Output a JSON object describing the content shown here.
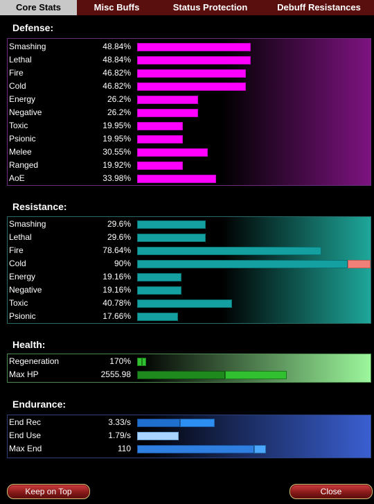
{
  "tabs": [
    "Core Stats",
    "Misc Buffs",
    "Status Protection",
    "Debuff Resistances"
  ],
  "active_tab": "Core Stats",
  "defense": {
    "title": "Defense:",
    "rows": [
      {
        "label": "Smashing",
        "value": "48.84%"
      },
      {
        "label": "Lethal",
        "value": "48.84%"
      },
      {
        "label": "Fire",
        "value": "46.82%"
      },
      {
        "label": "Cold",
        "value": "46.82%"
      },
      {
        "label": "Energy",
        "value": "26.2%"
      },
      {
        "label": "Negative",
        "value": "26.2%"
      },
      {
        "label": "Toxic",
        "value": "19.95%"
      },
      {
        "label": "Psionic",
        "value": "19.95%"
      },
      {
        "label": "Melee",
        "value": "30.55%"
      },
      {
        "label": "Ranged",
        "value": "19.92%"
      },
      {
        "label": "AoE",
        "value": "33.98%"
      }
    ]
  },
  "resistance": {
    "title": "Resistance:",
    "rows": [
      {
        "label": "Smashing",
        "value": "29.6%"
      },
      {
        "label": "Lethal",
        "value": "29.6%"
      },
      {
        "label": "Fire",
        "value": "78.64%"
      },
      {
        "label": "Cold",
        "value": "90%"
      },
      {
        "label": "Energy",
        "value": "19.16%"
      },
      {
        "label": "Negative",
        "value": "19.16%"
      },
      {
        "label": "Toxic",
        "value": "40.78%"
      },
      {
        "label": "Psionic",
        "value": "17.66%"
      }
    ]
  },
  "health": {
    "title": "Health:",
    "rows": [
      {
        "label": "Regeneration",
        "value": "170%"
      },
      {
        "label": "Max HP",
        "value": "2555.98"
      }
    ]
  },
  "endurance": {
    "title": "Endurance:",
    "rows": [
      {
        "label": "End Rec",
        "value": "3.33/s"
      },
      {
        "label": "End Use",
        "value": "1.79/s"
      },
      {
        "label": "Max End",
        "value": "110"
      }
    ]
  },
  "buttons": {
    "keep_on_top": "Keep on Top",
    "close": "Close"
  },
  "colors": {
    "tab_bar": "#5a0f0f",
    "active_tab": "#c8c8c8",
    "defense_bar": "#ff00ff",
    "resistance_bar": "#14a0a0",
    "resistance_over_cap": "#f08078",
    "health_bar": "#1e8a1e",
    "endurance_bar": "#1f6fcf"
  }
}
